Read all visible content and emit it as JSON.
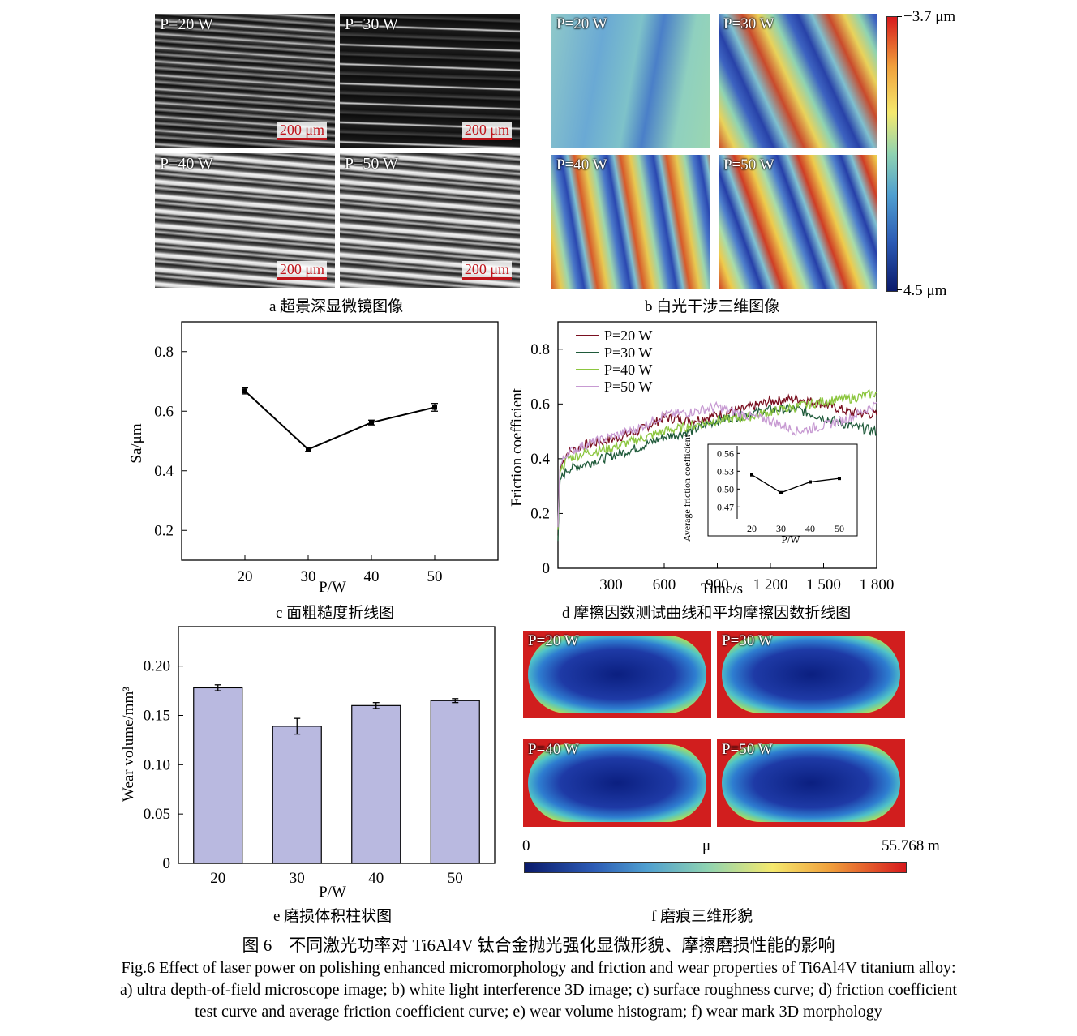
{
  "panel_a": {
    "labels": [
      "P=20 W",
      "P=30 W",
      "P=40 W",
      "P=50 W"
    ],
    "scale_bar": "200 μm",
    "caption": "a  超景深显微镜图像"
  },
  "panel_b": {
    "labels": [
      "P=20 W",
      "P=30 W",
      "P=40 W",
      "P=50 W"
    ],
    "colorbar_top": "−3.7 μm",
    "colorbar_bottom": "4.5 μm",
    "caption": "b  白光干涉三维图像"
  },
  "panel_f": {
    "labels": [
      "P=20 W",
      "P=30 W",
      "P=40 W",
      "P=50 W"
    ],
    "colorbar_min": "0",
    "colorbar_mid": "μ",
    "colorbar_max": "55.768 m",
    "caption": "f  磨痕三维形貌"
  },
  "chart_data": [
    {
      "id": "c",
      "type": "line",
      "caption": "c  面粗糙度折线图",
      "xlabel": "P/W",
      "ylabel": "Sa/μm",
      "x": [
        20,
        30,
        40,
        50
      ],
      "y": [
        0.668,
        0.472,
        0.562,
        0.613
      ],
      "err": [
        0.01,
        0.007,
        0.008,
        0.013
      ],
      "xlim": [
        10,
        60
      ],
      "ylim": [
        0.1,
        0.9
      ],
      "xticks": [
        20,
        30,
        40,
        50
      ],
      "yticks": [
        0.2,
        0.4,
        0.6,
        0.8
      ],
      "grid": false
    },
    {
      "id": "d",
      "type": "line",
      "caption": "d  摩擦因数测试曲线和平均摩擦因数折线图",
      "xlabel": "Time/s",
      "ylabel": "Friction coefficient",
      "xlim": [
        0,
        1800
      ],
      "ylim": [
        0,
        0.9
      ],
      "xticks": [
        "300",
        "600",
        "900",
        "1 200",
        "1 500",
        "1 800"
      ],
      "xtick_values": [
        300,
        600,
        900,
        1200,
        1500,
        1800
      ],
      "yticks": [
        "0",
        "0.2",
        "0.4",
        "0.6",
        "0.8"
      ],
      "ytick_values": [
        0,
        0.2,
        0.4,
        0.6,
        0.8
      ],
      "legend": "top-left",
      "series": [
        {
          "name": "P=20 W",
          "color": "#7a1020",
          "x": [
            0,
            10,
            50,
            150,
            300,
            450,
            600,
            750,
            900,
            1050,
            1200,
            1350,
            1500,
            1650,
            1800
          ],
          "y": [
            0.12,
            0.36,
            0.42,
            0.45,
            0.47,
            0.5,
            0.55,
            0.54,
            0.56,
            0.58,
            0.61,
            0.62,
            0.6,
            0.57,
            0.56
          ]
        },
        {
          "name": "P=30 W",
          "color": "#1f5a3a",
          "x": [
            0,
            10,
            50,
            150,
            300,
            450,
            600,
            750,
            900,
            1050,
            1200,
            1350,
            1500,
            1650,
            1800
          ],
          "y": [
            0.1,
            0.32,
            0.36,
            0.38,
            0.41,
            0.44,
            0.48,
            0.5,
            0.54,
            0.56,
            0.58,
            0.58,
            0.55,
            0.52,
            0.5
          ]
        },
        {
          "name": "P=40 W",
          "color": "#8cc63f",
          "x": [
            0,
            10,
            50,
            150,
            300,
            450,
            600,
            750,
            900,
            1050,
            1200,
            1350,
            1500,
            1650,
            1800
          ],
          "y": [
            0.14,
            0.35,
            0.4,
            0.42,
            0.44,
            0.47,
            0.5,
            0.52,
            0.54,
            0.55,
            0.57,
            0.59,
            0.61,
            0.62,
            0.64
          ]
        },
        {
          "name": "P=50 W",
          "color": "#c79ad2",
          "x": [
            0,
            10,
            50,
            150,
            300,
            450,
            600,
            750,
            900,
            1050,
            1200,
            1350,
            1500,
            1650,
            1800
          ],
          "y": [
            0.15,
            0.37,
            0.42,
            0.45,
            0.48,
            0.51,
            0.56,
            0.57,
            0.59,
            0.56,
            0.54,
            0.5,
            0.52,
            0.55,
            0.6
          ]
        }
      ],
      "inset": {
        "type": "line",
        "xlabel": "P/W",
        "ylabel": "Average friction coefficient",
        "x": [
          20,
          30,
          40,
          50
        ],
        "y": [
          0.524,
          0.494,
          0.512,
          0.518
        ],
        "err": [
          0.002,
          0.002,
          0.002,
          0.001
        ],
        "xlim": [
          15,
          55
        ],
        "ylim": [
          0.45,
          0.57
        ],
        "xticks": [
          20,
          30,
          40,
          50
        ],
        "yticks": [
          "0.47",
          "0.50",
          "0.53",
          "0.56"
        ],
        "ytick_values": [
          0.47,
          0.5,
          0.53,
          0.56
        ]
      }
    },
    {
      "id": "e",
      "type": "bar",
      "caption": "e  磨损体积柱状图",
      "xlabel": "P/W",
      "ylabel": "Wear volume/mm³",
      "categories": [
        "20",
        "30",
        "40",
        "50"
      ],
      "values": [
        0.178,
        0.139,
        0.16,
        0.165
      ],
      "err": [
        0.003,
        0.008,
        0.003,
        0.002
      ],
      "ylim": [
        0,
        0.24
      ],
      "yticks": [
        "0",
        "0.05",
        "0.10",
        "0.15",
        "0.20"
      ],
      "ytick_values": [
        0,
        0.05,
        0.1,
        0.15,
        0.2
      ],
      "bar_color": "#b9b9e0"
    }
  ],
  "figure": {
    "title_cn": "图 6　不同激光功率对 Ti6Al4V 钛合金抛光强化显微形貌、摩擦磨损性能的影响",
    "title_en_1": "Fig.6 Effect of laser power on polishing enhanced micromorphology and friction and wear properties of Ti6Al4V titanium alloy:",
    "title_en_2": "a) ultra depth-of-field microscope image; b) white light interference 3D image; c) surface roughness curve; d) friction coefficient",
    "title_en_3": "test curve and average friction coefficient curve; e) wear volume histogram; f) wear mark 3D morphology"
  }
}
